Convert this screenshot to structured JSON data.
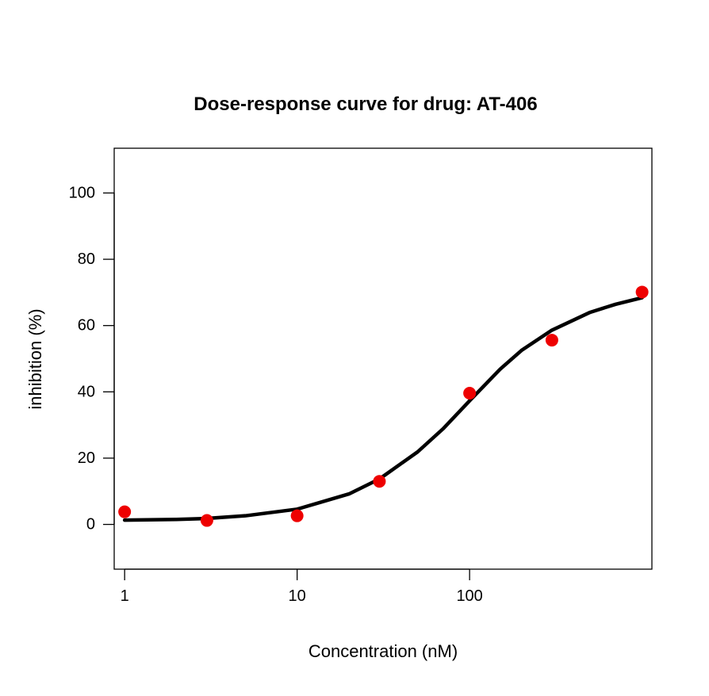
{
  "chart_data": {
    "type": "scatter",
    "title": "Dose-response curve for drug: AT-406",
    "xlabel": "Concentration (nM)",
    "ylabel": "inhibition (%)",
    "x_scale": "log",
    "xlim": [
      0.87,
      1140
    ],
    "ylim": [
      -13.5,
      113.5
    ],
    "x_ticks": [
      1,
      10,
      100
    ],
    "y_ticks": [
      0,
      20,
      40,
      60,
      80,
      100
    ],
    "grid": false,
    "legend": "none",
    "colors": {
      "points": "#ee0000",
      "curve": "#000000",
      "axes": "#000000"
    },
    "series": [
      {
        "type": "scatter",
        "x": [
          1,
          3,
          10,
          30,
          100,
          300,
          1000
        ],
        "y": [
          3.8,
          1.2,
          2.6,
          13.0,
          39.6,
          55.6,
          70.1
        ]
      },
      {
        "type": "line",
        "x": [
          1,
          2,
          3,
          5,
          10,
          20,
          30,
          50,
          70,
          100,
          150,
          200,
          300,
          500,
          700,
          1000
        ],
        "y": [
          1.3,
          1.5,
          1.8,
          2.6,
          4.6,
          9.2,
          13.7,
          21.9,
          28.8,
          37.3,
          46.8,
          52.5,
          58.6,
          64.0,
          66.4,
          68.4
        ]
      }
    ]
  }
}
